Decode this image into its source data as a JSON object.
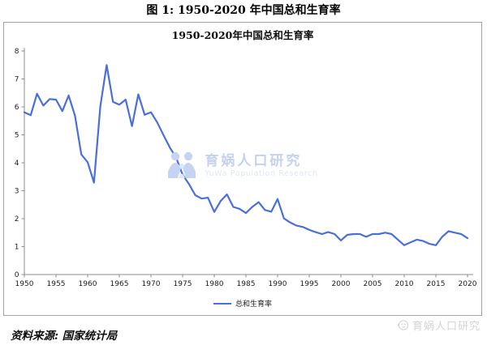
{
  "figure_title": "图 1: 1950-2020 年中国总和生育率",
  "chart": {
    "title": "1950-2020年中国总和生育率",
    "legend_label": "总和生育率",
    "line_color": "#4a6fdd",
    "axis_color": "#8c8c8c",
    "tick_label_color": "#1a1a1a",
    "watermark_cn": "育娲人口研究",
    "watermark_en": "YuWa Population Research",
    "watermark_color": "#c5d1ee"
  },
  "footer": {
    "source": "资料来源: 国家统计局",
    "watermark": "育娲人口研究"
  },
  "chart_data": {
    "type": "line",
    "title": "1950-2020年中国总和生育率",
    "xlabel": "",
    "ylabel": "",
    "ylim": [
      0,
      8
    ],
    "yticks": [
      0,
      1,
      2,
      3,
      4,
      5,
      6,
      7,
      8
    ],
    "xticks": [
      1950,
      1955,
      1960,
      1965,
      1970,
      1975,
      1980,
      1985,
      1990,
      1995,
      2000,
      2005,
      2010,
      2015,
      2020
    ],
    "grid": false,
    "legend_position": "bottom",
    "x": [
      1950,
      1951,
      1952,
      1953,
      1954,
      1955,
      1956,
      1957,
      1958,
      1959,
      1960,
      1961,
      1962,
      1963,
      1964,
      1965,
      1966,
      1967,
      1968,
      1969,
      1970,
      1971,
      1972,
      1973,
      1974,
      1975,
      1976,
      1977,
      1978,
      1979,
      1980,
      1981,
      1982,
      1983,
      1984,
      1985,
      1986,
      1987,
      1988,
      1989,
      1990,
      1991,
      1992,
      1993,
      1994,
      1995,
      1996,
      1997,
      1998,
      1999,
      2000,
      2001,
      2002,
      2003,
      2004,
      2005,
      2006,
      2007,
      2008,
      2009,
      2010,
      2011,
      2012,
      2013,
      2014,
      2015,
      2016,
      2017,
      2018,
      2019,
      2020
    ],
    "series": [
      {
        "name": "总和生育率",
        "color": "#4a6fdd",
        "values": [
          5.81,
          5.7,
          6.47,
          6.05,
          6.28,
          6.26,
          5.85,
          6.41,
          5.68,
          4.3,
          4.02,
          3.29,
          6.02,
          7.5,
          6.18,
          6.08,
          6.26,
          5.31,
          6.45,
          5.72,
          5.81,
          5.44,
          4.98,
          4.54,
          4.17,
          3.57,
          3.24,
          2.84,
          2.72,
          2.75,
          2.24,
          2.63,
          2.87,
          2.42,
          2.35,
          2.2,
          2.42,
          2.59,
          2.31,
          2.25,
          2.7,
          2.01,
          1.86,
          1.75,
          1.7,
          1.6,
          1.52,
          1.45,
          1.52,
          1.45,
          1.22,
          1.42,
          1.45,
          1.45,
          1.35,
          1.45,
          1.45,
          1.5,
          1.45,
          1.25,
          1.05,
          1.15,
          1.25,
          1.2,
          1.1,
          1.05,
          1.35,
          1.55,
          1.5,
          1.45,
          1.3
        ]
      }
    ]
  }
}
